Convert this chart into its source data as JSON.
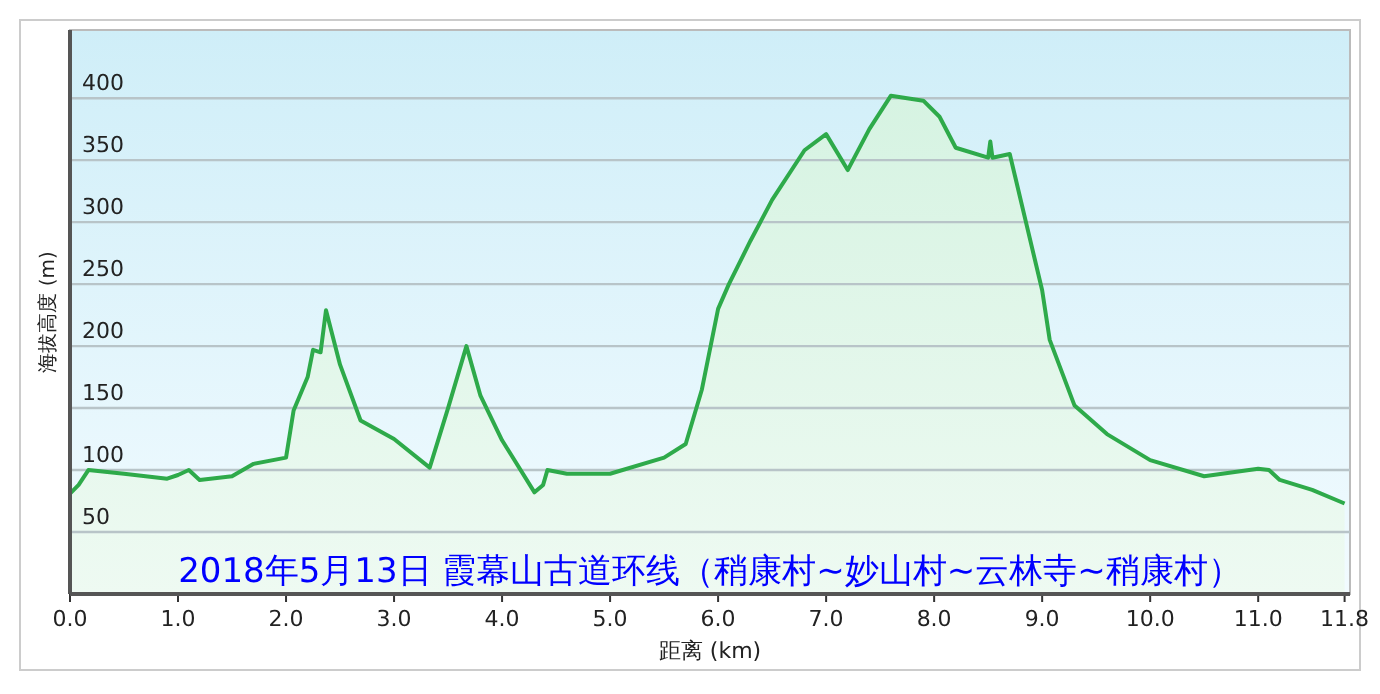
{
  "chart_data": {
    "type": "area",
    "xlabel": "距离 (km)",
    "ylabel": "海拔高度 (m)",
    "annotations": [
      "2018年5月13日 霞幕山古道环线（稍康村~妙山村~云林寺~稍康村）"
    ],
    "series": [
      {
        "color": "#2eaa4a",
        "x": [
          0,
          0.08,
          0.17,
          0.5,
          0.9,
          1.0,
          1.1,
          1.2,
          1.5,
          1.7,
          2.0,
          2.07,
          2.2,
          2.25,
          2.32,
          2.37,
          2.5,
          2.69,
          3.0,
          3.33,
          3.5,
          3.67,
          3.8,
          4.0,
          4.3,
          4.38,
          4.42,
          4.6,
          5.0,
          5.5,
          5.7,
          5.85,
          6.0,
          6.1,
          6.3,
          6.5,
          6.8,
          7.0,
          7.2,
          7.4,
          7.6,
          7.9,
          8.05,
          8.2,
          8.5,
          8.52,
          8.54,
          8.7,
          8.85,
          9.0,
          9.07,
          9.3,
          9.6,
          10.0,
          10.5,
          11.0,
          11.1,
          11.2,
          11.5,
          11.8
        ],
        "values": [
          81,
          88,
          100,
          97,
          93,
          96,
          100,
          92,
          95,
          105,
          110,
          148,
          175,
          197,
          195,
          229,
          185,
          140,
          125,
          102,
          150,
          200,
          160,
          124,
          82,
          88,
          100,
          97,
          97,
          110,
          121,
          165,
          230,
          250,
          285,
          318,
          358,
          371,
          342,
          375,
          402,
          398,
          385,
          360,
          352,
          365,
          352,
          355,
          300,
          245,
          205,
          152,
          129,
          108,
          95,
          101,
          100,
          92,
          84,
          73
        ]
      }
    ],
    "xlim": [
      0,
      11.85
    ],
    "ylim": [
      0,
      455
    ],
    "xticks": [
      {
        "value": 0,
        "label": "0.0"
      },
      {
        "value": 1,
        "label": "1.0"
      },
      {
        "value": 2,
        "label": "2.0"
      },
      {
        "value": 3,
        "label": "3.0"
      },
      {
        "value": 4,
        "label": "4.0"
      },
      {
        "value": 5,
        "label": "5.0"
      },
      {
        "value": 6,
        "label": "6.0"
      },
      {
        "value": 7,
        "label": "7.0"
      },
      {
        "value": 8,
        "label": "8.0"
      },
      {
        "value": 9,
        "label": "9.0"
      },
      {
        "value": 10,
        "label": "10.0"
      },
      {
        "value": 11,
        "label": "11.0"
      },
      {
        "value": 11.8,
        "label": "11.8"
      }
    ],
    "yticks": [
      50,
      100,
      150,
      200,
      250,
      300,
      350,
      400
    ],
    "grid": "y"
  }
}
